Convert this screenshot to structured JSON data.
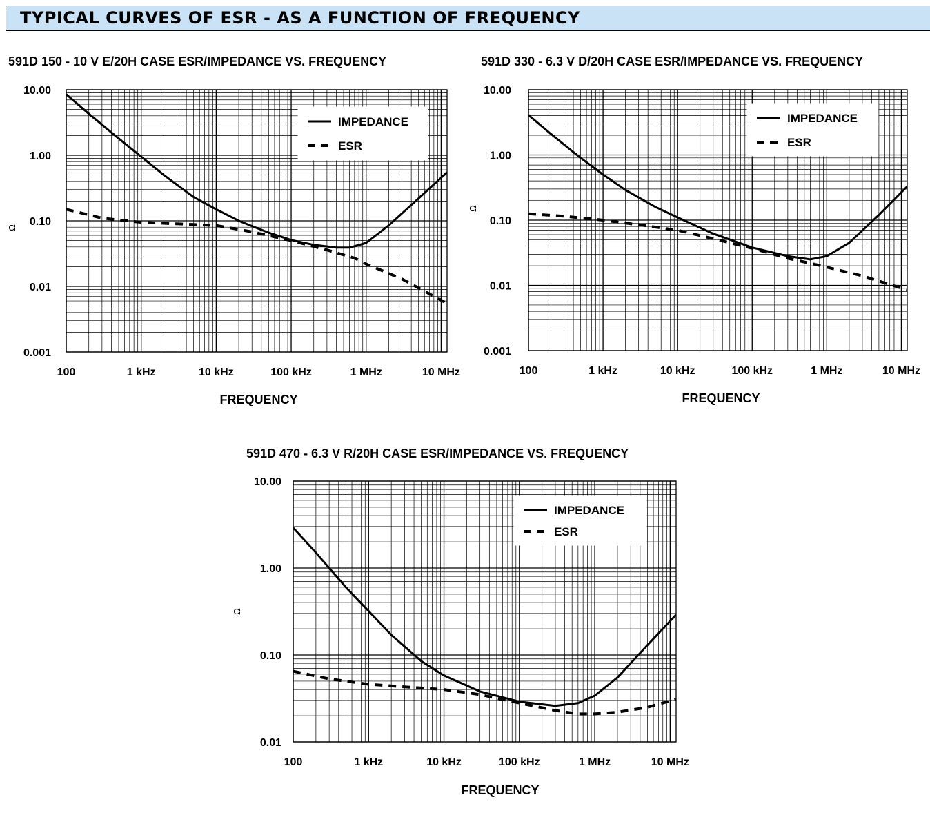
{
  "header": {
    "title": "TYPICAL CURVES OF ESR - AS A FUNCTION OF FREQUENCY",
    "background": "#c9e2f5"
  },
  "chart_data": [
    {
      "type": "line",
      "title": "591D 150 - 10 V E/20H CASE ESR/IMPEDANCE VS. FREQUENCY",
      "xlabel": "FREQUENCY",
      "ylabel": "Ω",
      "xscale": "log",
      "yscale": "log",
      "xlim": [
        100,
        12000000
      ],
      "ylim": [
        0.001,
        10
      ],
      "xtick_values": [
        100,
        1000,
        10000,
        100000,
        1000000,
        10000000
      ],
      "xticks": [
        "100",
        "1 kHz",
        "10 kHz",
        "100 kHz",
        "1 MHz",
        "10 MHz"
      ],
      "ytick_values": [
        10,
        1,
        0.1,
        0.01,
        0.001
      ],
      "yticks": [
        "10.00",
        "1.00",
        "0.10",
        "0.01",
        "0.001"
      ],
      "grid": true,
      "legend_position": "top-right",
      "series": [
        {
          "name": "IMPEDANCE",
          "style": "solid",
          "x": [
            100,
            200,
            500,
            1000,
            2000,
            5000,
            10000,
            20000,
            50000,
            100000,
            200000,
            400000,
            600000,
            1000000,
            2000000,
            5000000,
            12000000
          ],
          "y": [
            8.5,
            4.3,
            1.8,
            0.95,
            0.5,
            0.23,
            0.15,
            0.1,
            0.066,
            0.051,
            0.043,
            0.039,
            0.039,
            0.046,
            0.085,
            0.22,
            0.55
          ]
        },
        {
          "name": "ESR",
          "style": "dashed",
          "x": [
            100,
            300,
            1000,
            3000,
            10000,
            30000,
            100000,
            300000,
            700000,
            1000000,
            3000000,
            12000000
          ],
          "y": [
            0.15,
            0.11,
            0.095,
            0.09,
            0.085,
            0.068,
            0.05,
            0.036,
            0.027,
            0.022,
            0.013,
            0.0055
          ]
        }
      ]
    },
    {
      "type": "line",
      "title": "591D 330 - 6.3 V D/20H CASE ESR/IMPEDANCE VS. FREQUENCY",
      "xlabel": "FREQUENCY",
      "ylabel": "Ω",
      "xscale": "log",
      "yscale": "log",
      "xlim": [
        100,
        12000000
      ],
      "ylim": [
        0.001,
        10
      ],
      "xtick_values": [
        100,
        1000,
        10000,
        100000,
        1000000,
        10000000
      ],
      "xticks": [
        "100",
        "1 kHz",
        "10 kHz",
        "100 kHz",
        "1 MHz",
        "10 MHz"
      ],
      "ytick_values": [
        10,
        1,
        0.1,
        0.01,
        0.001
      ],
      "yticks": [
        "10.00",
        "1.00",
        "0.10",
        "0.01",
        "0.001"
      ],
      "grid": true,
      "legend_position": "top-right",
      "series": [
        {
          "name": "IMPEDANCE",
          "style": "solid",
          "x": [
            100,
            200,
            500,
            1000,
            2000,
            5000,
            10000,
            30000,
            100000,
            300000,
            600000,
            1000000,
            2000000,
            5000000,
            12000000
          ],
          "y": [
            4.1,
            2.1,
            0.9,
            0.5,
            0.29,
            0.16,
            0.11,
            0.062,
            0.038,
            0.028,
            0.025,
            0.028,
            0.045,
            0.12,
            0.33
          ]
        },
        {
          "name": "ESR",
          "style": "dashed",
          "x": [
            100,
            300,
            1000,
            3000,
            10000,
            30000,
            100000,
            300000,
            700000,
            1000000,
            3000000,
            12000000
          ],
          "y": [
            0.125,
            0.115,
            0.1,
            0.085,
            0.07,
            0.052,
            0.037,
            0.026,
            0.021,
            0.019,
            0.014,
            0.0085
          ]
        }
      ]
    },
    {
      "type": "line",
      "title": "591D 470 - 6.3 V R/20H CASE ESR/IMPEDANCE VS. FREQUENCY",
      "xlabel": "FREQUENCY",
      "ylabel": "Ω",
      "xscale": "log",
      "yscale": "log",
      "xlim": [
        100,
        12000000
      ],
      "ylim": [
        0.01,
        10
      ],
      "xtick_values": [
        100,
        1000,
        10000,
        100000,
        1000000,
        10000000
      ],
      "xticks": [
        "100",
        "1 kHz",
        "10 kHz",
        "100 kHz",
        "1 MHz",
        "10 MHz"
      ],
      "ytick_values": [
        10,
        1,
        0.1,
        0.01
      ],
      "yticks": [
        "10.00",
        "1.00",
        "0.10",
        "0.01"
      ],
      "grid": true,
      "legend_position": "top-right",
      "series": [
        {
          "name": "IMPEDANCE",
          "style": "solid",
          "x": [
            100,
            200,
            500,
            1000,
            2000,
            5000,
            10000,
            30000,
            100000,
            300000,
            600000,
            1000000,
            2000000,
            5000000,
            12000000
          ],
          "y": [
            2.9,
            1.5,
            0.6,
            0.32,
            0.17,
            0.085,
            0.058,
            0.038,
            0.029,
            0.026,
            0.028,
            0.034,
            0.055,
            0.13,
            0.29
          ]
        },
        {
          "name": "ESR",
          "style": "dashed",
          "x": [
            100,
            300,
            1000,
            3000,
            10000,
            30000,
            100000,
            300000,
            600000,
            1000000,
            2000000,
            5000000,
            12000000
          ],
          "y": [
            0.065,
            0.053,
            0.046,
            0.043,
            0.04,
            0.035,
            0.028,
            0.023,
            0.021,
            0.021,
            0.022,
            0.025,
            0.031
          ]
        }
      ]
    }
  ]
}
